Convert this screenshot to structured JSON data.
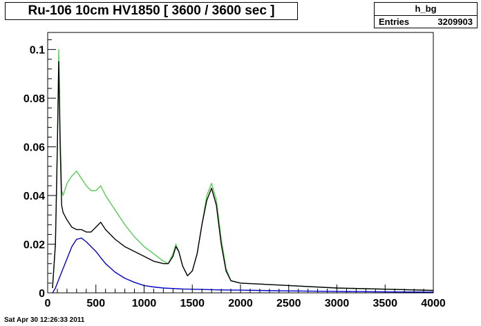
{
  "title": "Ru-106 10cm HV1850 [ 3600 / 3600 sec ]",
  "stats": {
    "name": "h_bg",
    "entries_label": "Entries",
    "entries_value": "3209903"
  },
  "timestamp": "Sat Apr 30 12:26:33 2011",
  "chart_data": {
    "type": "line",
    "xlim": [
      0,
      4000
    ],
    "ylim": [
      0,
      0.107
    ],
    "x_ticks": [
      0,
      500,
      1000,
      1500,
      2000,
      2500,
      3000,
      3500,
      4000
    ],
    "x_tick_labels": [
      "0",
      "500",
      "1000",
      "1500",
      "2000",
      "2500",
      "3000",
      "3500",
      "4000"
    ],
    "y_ticks": [
      0,
      0.02,
      0.04,
      0.06,
      0.08,
      0.1
    ],
    "y_tick_labels": [
      "0",
      "0.02",
      "0.04",
      "0.06",
      "0.08",
      "0.1"
    ],
    "grid": false,
    "series": [
      {
        "color": "#55cc55",
        "x": [
          50,
          80,
          100,
          115,
          130,
          145,
          160,
          200,
          250,
          300,
          350,
          400,
          450,
          500,
          550,
          600,
          700,
          800,
          900,
          1000,
          1100,
          1200,
          1250,
          1300,
          1330,
          1360,
          1400,
          1450,
          1500,
          1550,
          1600,
          1650,
          1700,
          1750,
          1800,
          1850,
          1900,
          2000,
          2500,
          3000,
          3500,
          4000
        ],
        "y": [
          0.002,
          0.02,
          0.06,
          0.1,
          0.065,
          0.042,
          0.04,
          0.045,
          0.048,
          0.05,
          0.047,
          0.044,
          0.042,
          0.042,
          0.044,
          0.04,
          0.034,
          0.028,
          0.023,
          0.019,
          0.016,
          0.013,
          0.012,
          0.016,
          0.02,
          0.017,
          0.011,
          0.007,
          0.009,
          0.016,
          0.028,
          0.04,
          0.045,
          0.038,
          0.022,
          0.01,
          0.005,
          0.004,
          0.003,
          0.002,
          0.0015,
          0.001
        ]
      },
      {
        "color": "#000000",
        "x": [
          50,
          80,
          100,
          115,
          130,
          145,
          160,
          200,
          250,
          300,
          350,
          400,
          450,
          500,
          550,
          600,
          700,
          800,
          900,
          1000,
          1100,
          1200,
          1250,
          1300,
          1330,
          1360,
          1400,
          1450,
          1500,
          1550,
          1600,
          1650,
          1700,
          1750,
          1800,
          1850,
          1900,
          2000,
          2500,
          3000,
          3500,
          4000
        ],
        "y": [
          0.002,
          0.02,
          0.06,
          0.095,
          0.06,
          0.036,
          0.033,
          0.03,
          0.027,
          0.026,
          0.026,
          0.025,
          0.025,
          0.027,
          0.029,
          0.026,
          0.022,
          0.019,
          0.017,
          0.015,
          0.013,
          0.012,
          0.012,
          0.015,
          0.019,
          0.017,
          0.011,
          0.007,
          0.009,
          0.016,
          0.028,
          0.038,
          0.043,
          0.036,
          0.02,
          0.009,
          0.005,
          0.004,
          0.003,
          0.002,
          0.0015,
          0.001
        ]
      },
      {
        "color": "#0000cc",
        "x": [
          50,
          80,
          120,
          160,
          200,
          250,
          300,
          350,
          400,
          450,
          500,
          550,
          600,
          700,
          800,
          900,
          1000,
          1100,
          1200,
          1400,
          1600,
          1800,
          2000,
          2500,
          3000,
          3500,
          4000
        ],
        "y": [
          0.0,
          0.002,
          0.006,
          0.01,
          0.014,
          0.019,
          0.022,
          0.0225,
          0.021,
          0.019,
          0.017,
          0.0145,
          0.012,
          0.0085,
          0.006,
          0.0043,
          0.003,
          0.0024,
          0.002,
          0.0016,
          0.0014,
          0.0012,
          0.0011,
          0.0008,
          0.0006,
          0.0004,
          0.0003
        ]
      }
    ]
  }
}
